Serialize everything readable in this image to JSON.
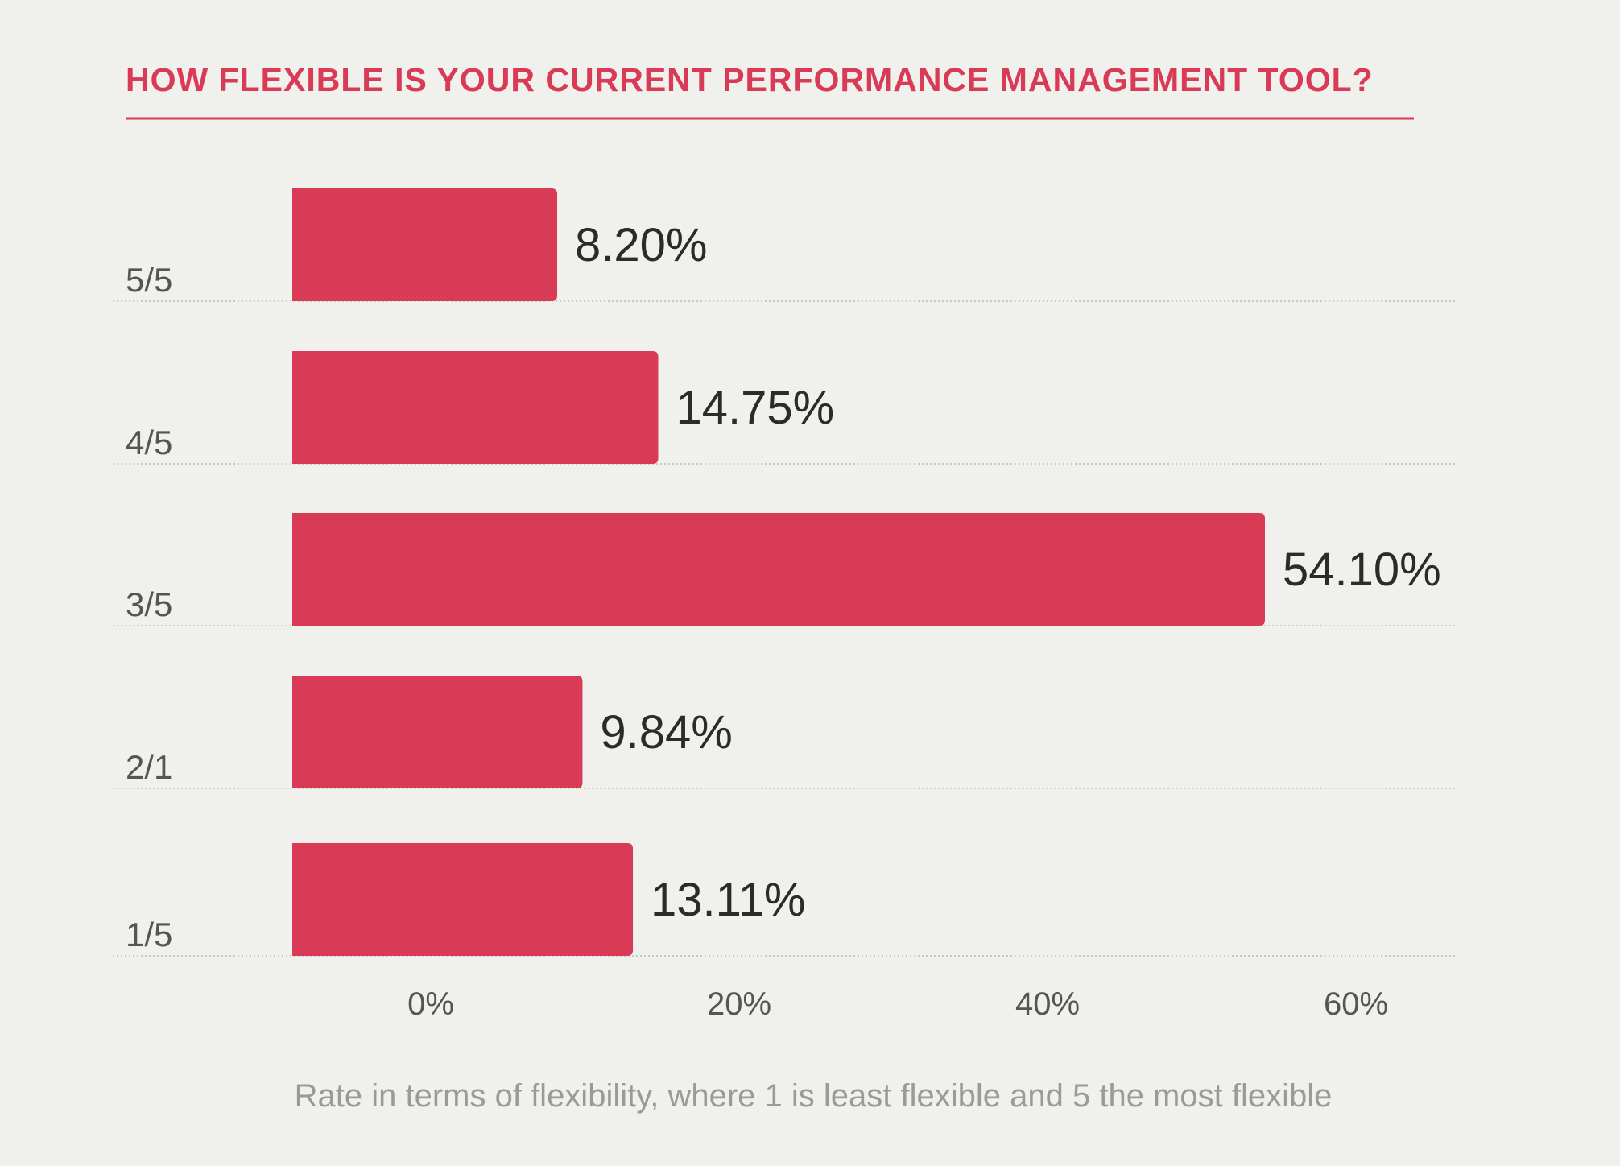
{
  "colors": {
    "accent": "#d93a55",
    "bar": "#d93a55",
    "background": "#f0f0ec",
    "text": "#2b2b2b",
    "muted": "#9a9a9a"
  },
  "chart_data": {
    "type": "bar",
    "orientation": "horizontal",
    "title": "HOW FLEXIBLE IS YOUR CURRENT PERFORMANCE MANAGEMENT TOOL?",
    "caption": "Rate in terms of flexibility, where 1 is least flexible and 5 the most flexible",
    "categories": [
      "5/5",
      "4/5",
      "3/5",
      "2/1",
      "1/5"
    ],
    "values": [
      8.2,
      14.75,
      54.1,
      9.84,
      13.11
    ],
    "value_labels": [
      "8.20%",
      "14.75%",
      "54.10%",
      "9.84%",
      "13.11%"
    ],
    "x_ticks": [
      0,
      20,
      40,
      60
    ],
    "x_tick_labels": [
      "0%",
      "20%",
      "40%",
      "60%"
    ],
    "xlim": [
      -8,
      62
    ],
    "unit": "%",
    "grid": false,
    "legend": "none"
  }
}
